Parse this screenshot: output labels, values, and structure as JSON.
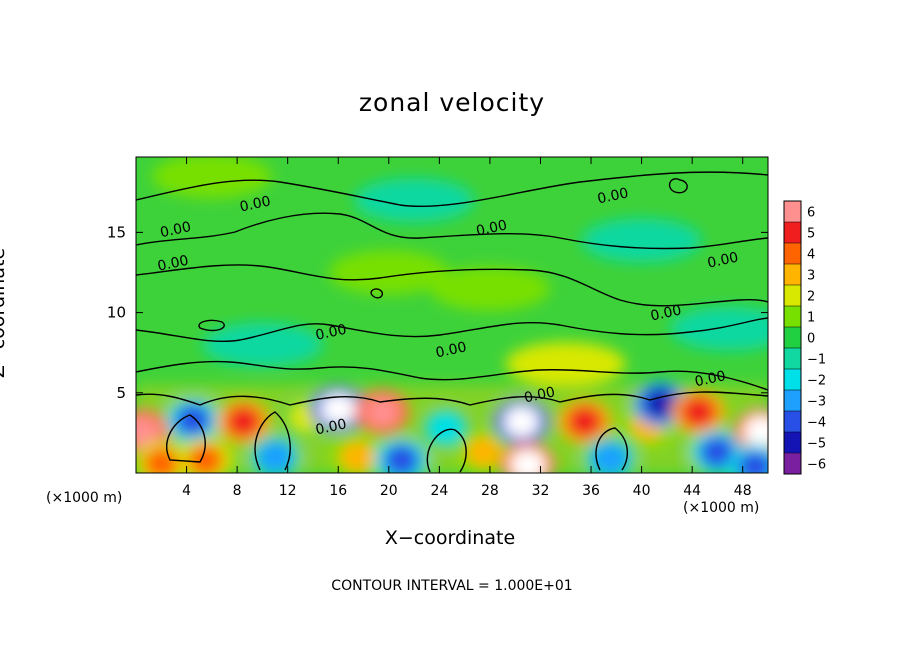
{
  "chart_data": {
    "type": "heatmap",
    "title": "zonal velocity",
    "xlabel": "X−coordinate",
    "ylabel": "Z−coordinate",
    "x_unit_left": "(×1000 m)",
    "x_unit_right": "(×1000 m)",
    "footer": "CONTOUR INTERVAL = 1.000E+01",
    "xlim": [
      0,
      50
    ],
    "ylim": [
      0,
      19.7
    ],
    "xticks": [
      4,
      8,
      12,
      16,
      20,
      24,
      28,
      32,
      36,
      40,
      44,
      48
    ],
    "yticks": [
      5,
      10,
      15
    ],
    "colorbar": {
      "min": -6,
      "max": 6,
      "ticks": [
        6,
        5,
        4,
        3,
        2,
        1,
        0,
        -1,
        -2,
        -3,
        -4,
        -5,
        -6
      ],
      "tick_labels": [
        "6",
        "5",
        "4",
        "3",
        "2",
        "1",
        "0",
        "−1",
        "−2",
        "−3",
        "−4",
        "−5",
        "−6"
      ],
      "colors": [
        "#7a1fa0",
        "#1414b4",
        "#2850e6",
        "#1ea0ff",
        "#00e0e8",
        "#10d8a0",
        "#20d040",
        "#78e000",
        "#d8e800",
        "#ffb400",
        "#ff6400",
        "#f01e1e",
        "#ff9090"
      ]
    },
    "contour_labels": [
      {
        "text": "0.00",
        "x": 3.2,
        "y": 14.9
      },
      {
        "text": "0.00",
        "x": 9.5,
        "y": 16.5
      },
      {
        "text": "0.00",
        "x": 3.0,
        "y": 12.8
      },
      {
        "text": "0.00",
        "x": 28.2,
        "y": 15.0
      },
      {
        "text": "0.00",
        "x": 37.8,
        "y": 17.0
      },
      {
        "text": "0.00",
        "x": 46.5,
        "y": 13.0
      },
      {
        "text": "0.00",
        "x": 42.0,
        "y": 9.7
      },
      {
        "text": "0.00",
        "x": 15.5,
        "y": 8.5
      },
      {
        "text": "0.00",
        "x": 25.0,
        "y": 7.4
      },
      {
        "text": "0.00",
        "x": 45.5,
        "y": 5.6
      },
      {
        "text": "0.00",
        "x": 32.0,
        "y": 4.6
      },
      {
        "text": "0.00",
        "x": 15.5,
        "y": 2.6
      }
    ],
    "features": [
      {
        "x": 0.5,
        "y": 2.6,
        "v": 5.5
      },
      {
        "x": 2.0,
        "y": 0.6,
        "v": 4.0
      },
      {
        "x": 4.5,
        "y": 3.3,
        "v": -4.5
      },
      {
        "x": 5.5,
        "y": 0.8,
        "v": 3.5
      },
      {
        "x": 8.5,
        "y": 3.2,
        "v": 5.0
      },
      {
        "x": 11.0,
        "y": 1.0,
        "v": -3.0
      },
      {
        "x": 13.5,
        "y": 3.5,
        "v": 2.0
      },
      {
        "x": 16.0,
        "y": 4.0,
        "v": -6.0
      },
      {
        "x": 19.5,
        "y": 3.8,
        "v": 5.5
      },
      {
        "x": 17.5,
        "y": 1.0,
        "v": 3.0
      },
      {
        "x": 21.0,
        "y": 0.8,
        "v": -4.0
      },
      {
        "x": 24.5,
        "y": 2.8,
        "v": -2.5
      },
      {
        "x": 27.5,
        "y": 1.3,
        "v": 3.0
      },
      {
        "x": 30.5,
        "y": 3.2,
        "v": -6.0
      },
      {
        "x": 31.0,
        "y": 0.5,
        "v": 6.0
      },
      {
        "x": 35.5,
        "y": 3.2,
        "v": 4.5
      },
      {
        "x": 37.5,
        "y": 0.9,
        "v": -3.0
      },
      {
        "x": 40.5,
        "y": 3.0,
        "v": 2.5
      },
      {
        "x": 41.5,
        "y": 4.3,
        "v": -5.5
      },
      {
        "x": 44.5,
        "y": 3.8,
        "v": 5.0
      },
      {
        "x": 46.0,
        "y": 1.3,
        "v": -4.0
      },
      {
        "x": 49.5,
        "y": 2.6,
        "v": 6.0
      },
      {
        "x": 49.0,
        "y": 0.4,
        "v": -4.0
      },
      {
        "x": 10.0,
        "y": 8.0,
        "v": -1.0
      },
      {
        "x": 20.0,
        "y": 12.5,
        "v": 0.9
      },
      {
        "x": 22.0,
        "y": 17.0,
        "v": -1.3
      },
      {
        "x": 28.0,
        "y": 11.5,
        "v": 1.0
      },
      {
        "x": 40.0,
        "y": 14.5,
        "v": -1.5
      },
      {
        "x": 6.0,
        "y": 18.5,
        "v": 1.2
      },
      {
        "x": 34.0,
        "y": 6.8,
        "v": 1.5
      },
      {
        "x": 47.0,
        "y": 9.0,
        "v": -1.2
      }
    ]
  }
}
